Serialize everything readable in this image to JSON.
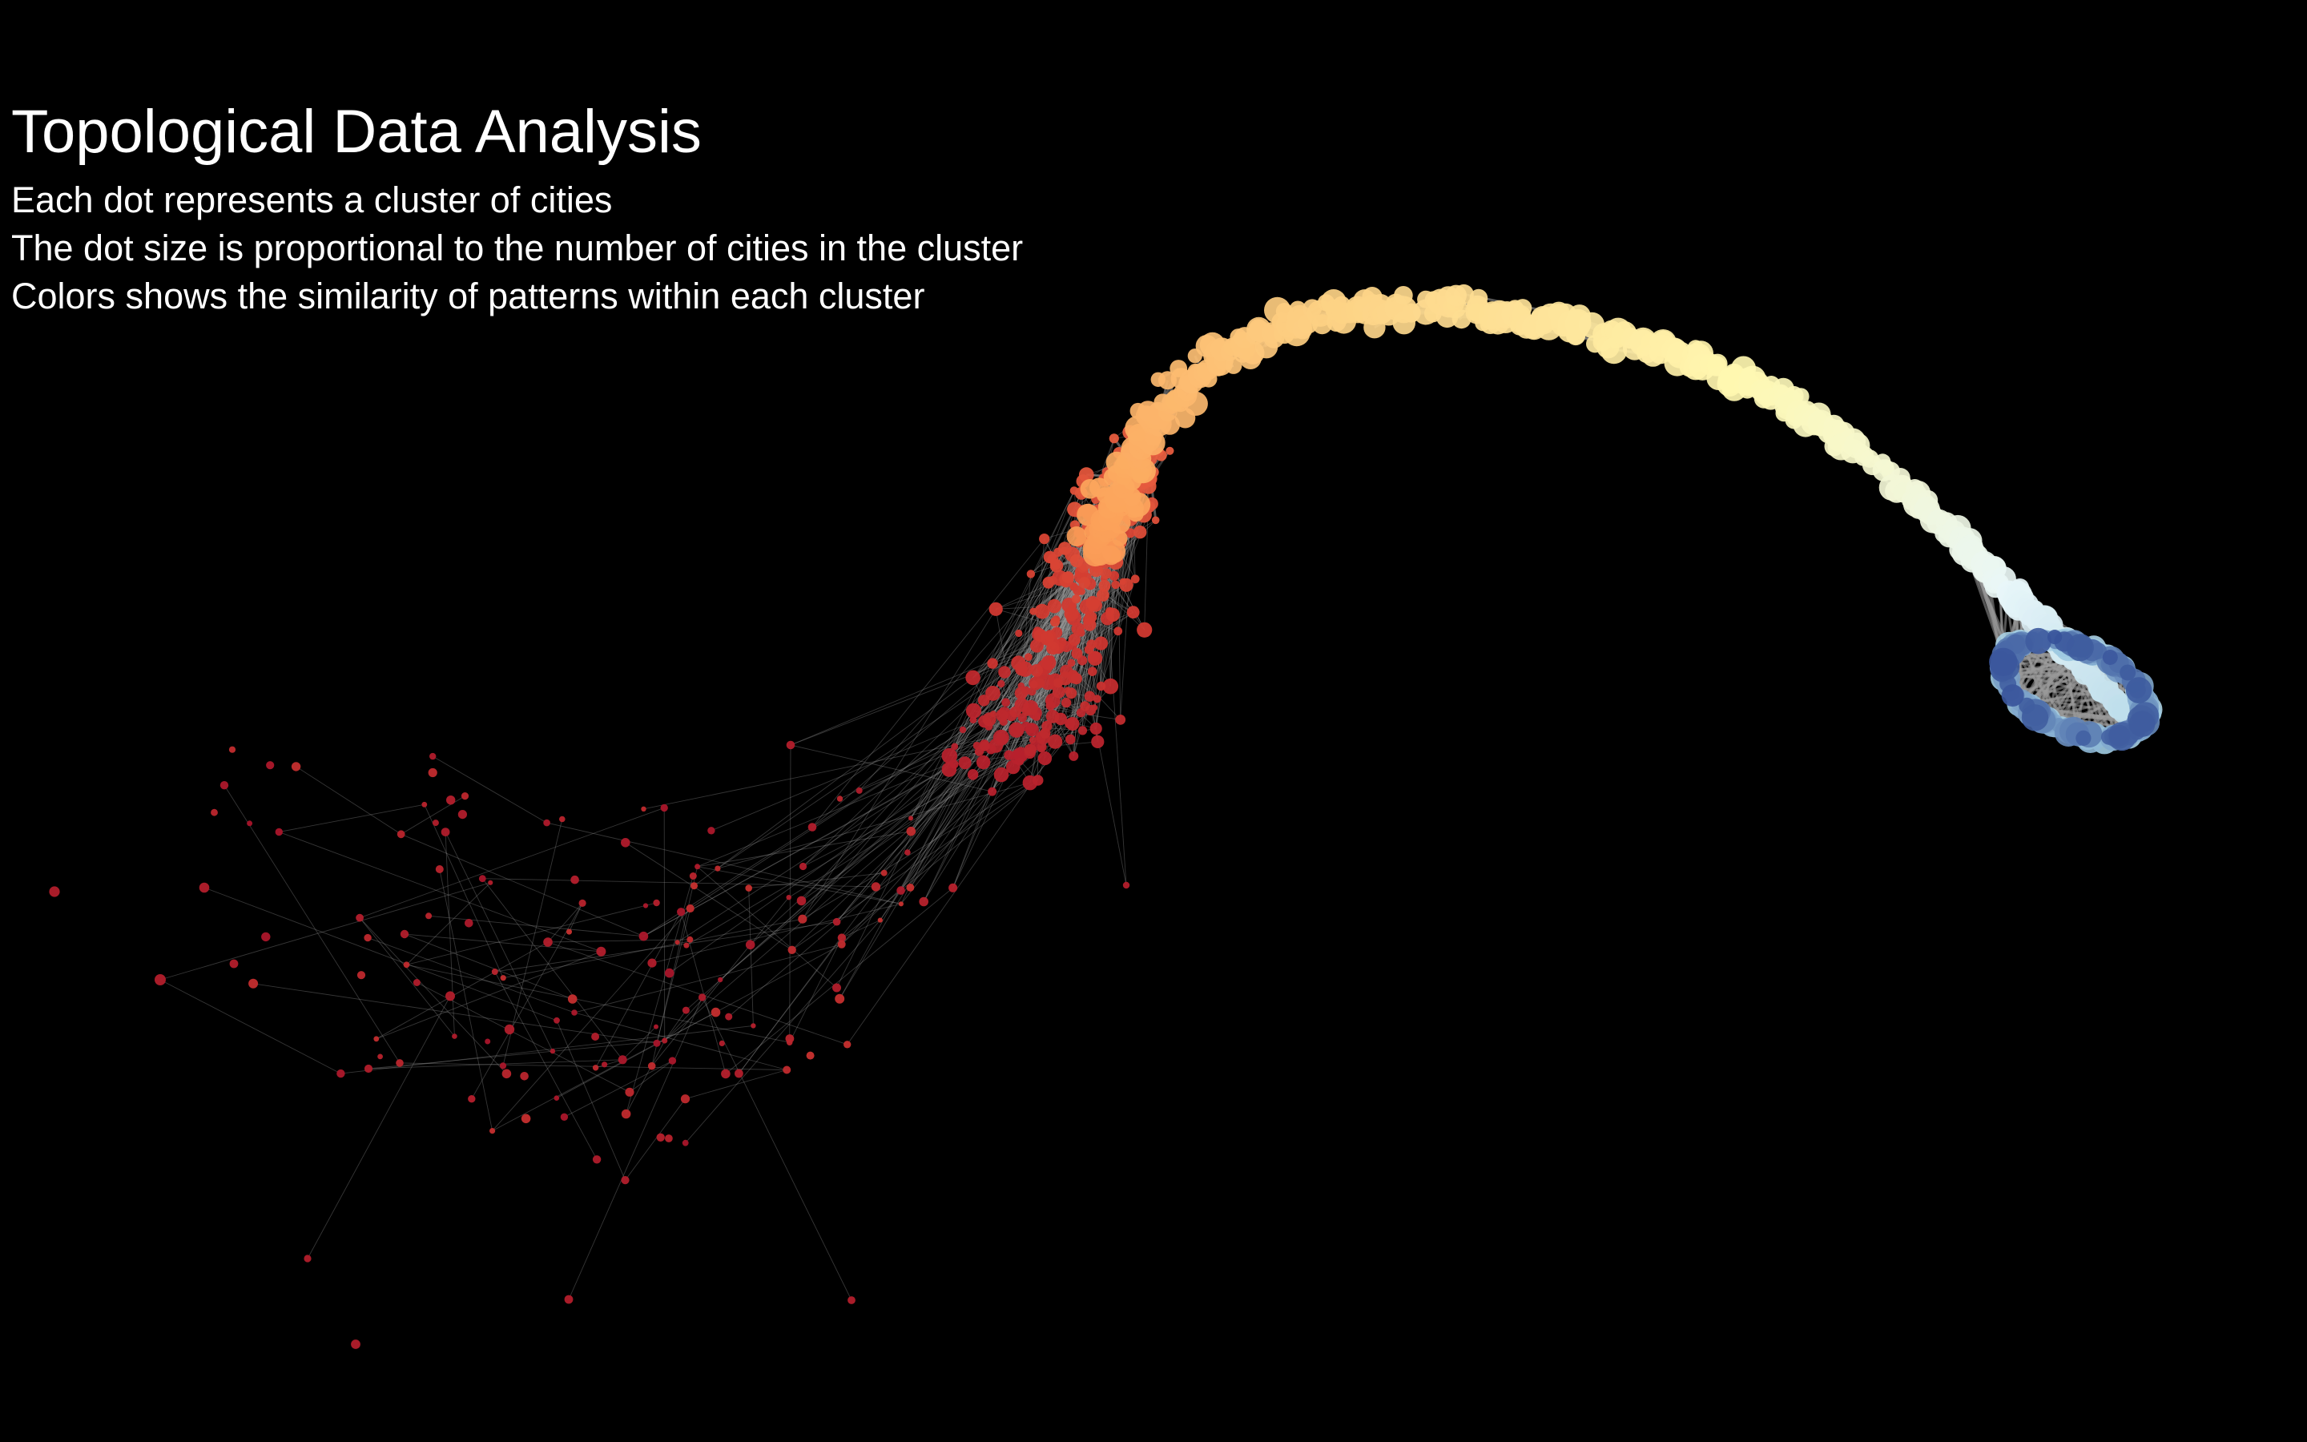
{
  "title": "Topological Data Analysis",
  "subtitle_lines": [
    "Each dot represents a cluster of cities",
    "The dot size is proportional to the number of cities in the cluster",
    "Colors shows the similarity of patterns within each cluster"
  ],
  "colors": {
    "background": "#000000",
    "text": "#ffffff",
    "edges": "#9a9a9a",
    "gradient": [
      "#233c8c",
      "#9ecae1",
      "#e8f6f8",
      "#fff7b0",
      "#fdd184",
      "#fca35a",
      "#ef6a44",
      "#d23a30",
      "#a8142a"
    ]
  }
}
